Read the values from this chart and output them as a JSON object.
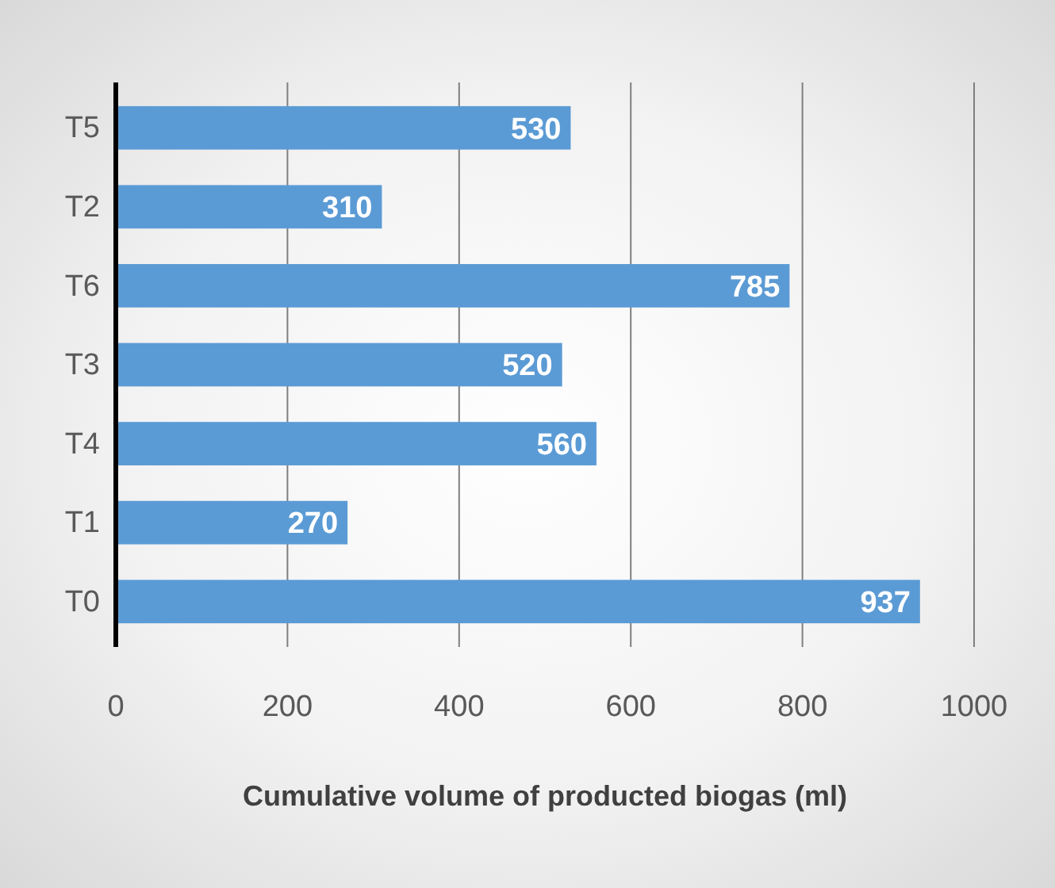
{
  "chart_data": {
    "type": "bar",
    "orientation": "horizontal",
    "categories": [
      "T5",
      "T2",
      "T6",
      "T3",
      "T4",
      "T1",
      "T0"
    ],
    "values": [
      530,
      310,
      785,
      520,
      560,
      270,
      937
    ],
    "color": "#5b9bd5",
    "xlim": [
      0,
      1000
    ],
    "xticks": [
      0,
      200,
      400,
      600,
      800,
      1000
    ],
    "grid": "x",
    "data_labels": true,
    "xlabel": "Cumulative volume of producted biogas (ml)"
  }
}
